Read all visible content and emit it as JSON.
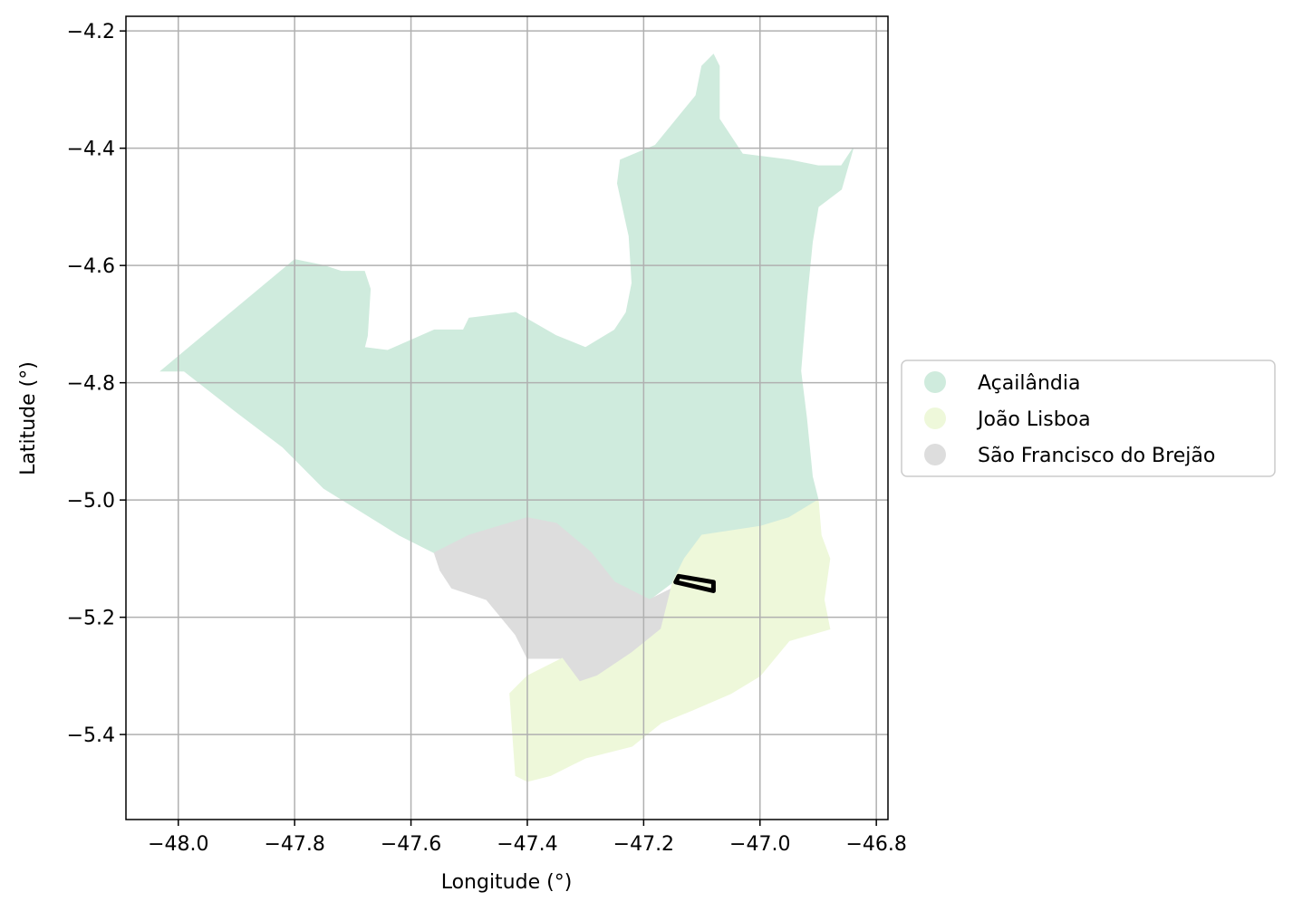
{
  "chart_data": {
    "type": "choropleth-map",
    "xlabel": "Longitude (°)",
    "ylabel": "Latitude (°)",
    "xlim": [
      -48.09,
      -46.78
    ],
    "ylim": [
      -5.545,
      -4.175
    ],
    "x_ticks": [
      -48.0,
      -47.8,
      -47.6,
      -47.4,
      -47.2,
      -47.0,
      -46.8
    ],
    "x_tick_labels": [
      "−48.0",
      "−47.8",
      "−47.6",
      "−47.4",
      "−47.2",
      "−47.0",
      "−46.8"
    ],
    "y_ticks": [
      -4.2,
      -4.4,
      -4.6,
      -4.8,
      -5.0,
      -5.2,
      -5.4
    ],
    "y_tick_labels": [
      "−4.2",
      "−4.4",
      "−4.6",
      "−4.8",
      "−5.0",
      "−5.2",
      "−5.4"
    ],
    "grid": true,
    "legend_placement": "center-right-outside",
    "legend": [
      {
        "label": "Açailândia",
        "color": "#cfebdd"
      },
      {
        "label": "João Lisboa",
        "color": "#eef8da"
      },
      {
        "label": "São Francisco do Brejão",
        "color": "#dddddd"
      }
    ],
    "regions": [
      {
        "name": "Açailândia",
        "color": "#cfebdd",
        "polygon": [
          [
            -48.03,
            -4.78
          ],
          [
            -47.8,
            -4.59
          ],
          [
            -47.75,
            -4.6
          ],
          [
            -47.72,
            -4.61
          ],
          [
            -47.68,
            -4.61
          ],
          [
            -47.67,
            -4.64
          ],
          [
            -47.675,
            -4.72
          ],
          [
            -47.68,
            -4.74
          ],
          [
            -47.64,
            -4.745
          ],
          [
            -47.56,
            -4.71
          ],
          [
            -47.51,
            -4.71
          ],
          [
            -47.5,
            -4.69
          ],
          [
            -47.42,
            -4.68
          ],
          [
            -47.35,
            -4.72
          ],
          [
            -47.3,
            -4.74
          ],
          [
            -47.25,
            -4.71
          ],
          [
            -47.23,
            -4.68
          ],
          [
            -47.22,
            -4.63
          ],
          [
            -47.225,
            -4.55
          ],
          [
            -47.245,
            -4.46
          ],
          [
            -47.24,
            -4.42
          ],
          [
            -47.18,
            -4.395
          ],
          [
            -47.11,
            -4.31
          ],
          [
            -47.1,
            -4.26
          ],
          [
            -47.08,
            -4.24
          ],
          [
            -47.07,
            -4.26
          ],
          [
            -47.07,
            -4.35
          ],
          [
            -47.03,
            -4.41
          ],
          [
            -46.95,
            -4.42
          ],
          [
            -46.9,
            -4.43
          ],
          [
            -46.86,
            -4.43
          ],
          [
            -46.84,
            -4.4
          ],
          [
            -46.86,
            -4.47
          ],
          [
            -46.9,
            -4.5
          ],
          [
            -46.91,
            -4.56
          ],
          [
            -46.92,
            -4.66
          ],
          [
            -46.93,
            -4.78
          ],
          [
            -46.92,
            -4.86
          ],
          [
            -46.91,
            -4.96
          ],
          [
            -46.9,
            -5.0
          ],
          [
            -46.95,
            -5.03
          ],
          [
            -47.0,
            -5.045
          ],
          [
            -47.08,
            -5.07
          ],
          [
            -47.13,
            -5.1
          ],
          [
            -47.15,
            -5.14
          ],
          [
            -47.19,
            -5.17
          ],
          [
            -47.25,
            -5.14
          ],
          [
            -47.29,
            -5.09
          ],
          [
            -47.4,
            -5.03
          ],
          [
            -47.5,
            -5.06
          ],
          [
            -47.56,
            -5.09
          ],
          [
            -47.62,
            -5.06
          ],
          [
            -47.75,
            -4.98
          ],
          [
            -47.82,
            -4.91
          ],
          [
            -47.9,
            -4.85
          ],
          [
            -47.99,
            -4.78
          ]
        ]
      },
      {
        "name": "São Francisco do Brejão",
        "color": "#dddddd",
        "polygon": [
          [
            -47.56,
            -5.09
          ],
          [
            -47.5,
            -5.06
          ],
          [
            -47.4,
            -5.03
          ],
          [
            -47.35,
            -5.04
          ],
          [
            -47.29,
            -5.09
          ],
          [
            -47.25,
            -5.14
          ],
          [
            -47.19,
            -5.17
          ],
          [
            -47.15,
            -5.15
          ],
          [
            -47.17,
            -5.22
          ],
          [
            -47.22,
            -5.26
          ],
          [
            -47.28,
            -5.3
          ],
          [
            -47.31,
            -5.31
          ],
          [
            -47.34,
            -5.27
          ],
          [
            -47.4,
            -5.27
          ],
          [
            -47.42,
            -5.23
          ],
          [
            -47.47,
            -5.17
          ],
          [
            -47.53,
            -5.15
          ],
          [
            -47.55,
            -5.12
          ]
        ]
      },
      {
        "name": "João Lisboa",
        "color": "#eef8da",
        "polygon": [
          [
            -47.15,
            -5.14
          ],
          [
            -47.13,
            -5.1
          ],
          [
            -47.1,
            -5.06
          ],
          [
            -47.0,
            -5.045
          ],
          [
            -46.95,
            -5.03
          ],
          [
            -46.9,
            -5.0
          ],
          [
            -46.895,
            -5.06
          ],
          [
            -46.88,
            -5.1
          ],
          [
            -46.89,
            -5.17
          ],
          [
            -46.88,
            -5.22
          ],
          [
            -46.95,
            -5.24
          ],
          [
            -47.0,
            -5.3
          ],
          [
            -47.05,
            -5.33
          ],
          [
            -47.12,
            -5.36
          ],
          [
            -47.17,
            -5.38
          ],
          [
            -47.22,
            -5.42
          ],
          [
            -47.3,
            -5.44
          ],
          [
            -47.36,
            -5.47
          ],
          [
            -47.4,
            -5.48
          ],
          [
            -47.42,
            -5.47
          ],
          [
            -47.43,
            -5.33
          ],
          [
            -47.4,
            -5.3
          ],
          [
            -47.34,
            -5.27
          ],
          [
            -47.31,
            -5.31
          ],
          [
            -47.28,
            -5.3
          ],
          [
            -47.22,
            -5.26
          ],
          [
            -47.17,
            -5.22
          ]
        ]
      }
    ],
    "highlight_outline": [
      [
        -47.14,
        -5.13
      ],
      [
        -47.08,
        -5.14
      ],
      [
        -47.08,
        -5.155
      ],
      [
        -47.145,
        -5.14
      ]
    ]
  }
}
